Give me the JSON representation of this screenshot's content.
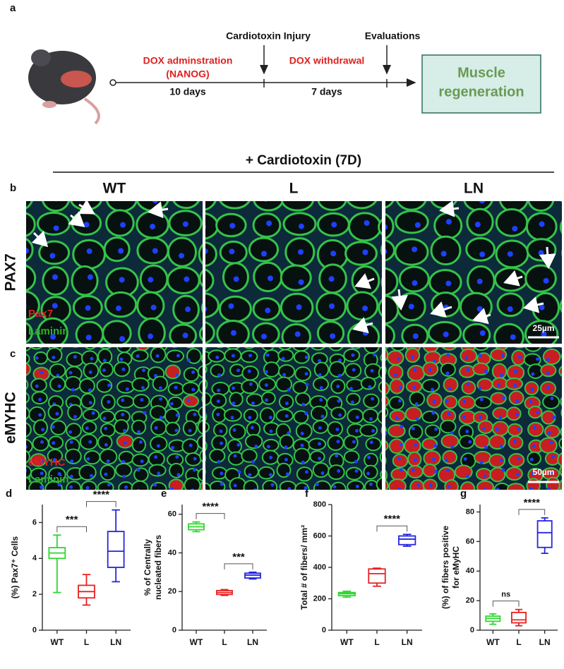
{
  "timeline": {
    "label": "a",
    "events": [
      "Cardiotoxin Injury",
      "Evaluations"
    ],
    "phases": [
      {
        "name": "DOX adminstration",
        "sub": "(NANOG)",
        "duration": "10 days"
      },
      {
        "name": "DOX withdrawal",
        "duration": "7 days"
      }
    ],
    "outcome": [
      "Muscle",
      "regeneration"
    ]
  },
  "microscopy": {
    "treatment": "+ Cardiotoxin (7D)",
    "columns": [
      "WT",
      "L",
      "LN"
    ],
    "rows": [
      {
        "label": "b",
        "name": "PAX7",
        "stain": [
          "Pax7",
          "Laminin"
        ],
        "scale": "25µm"
      },
      {
        "label": "c",
        "name": "eMYHC",
        "stain": [
          "eMYHC",
          "Laminin"
        ],
        "scale": "50µm"
      }
    ]
  },
  "chart_data": [
    {
      "type": "box",
      "label": "d",
      "ylabel": [
        "(%) Pax7⁺ Cells"
      ],
      "categories": [
        "WT",
        "L",
        "LN"
      ],
      "colors": [
        "#2fd62f",
        "#e82020",
        "#2525e0"
      ],
      "min": [
        2.1,
        1.4,
        2.7
      ],
      "q1": [
        4.0,
        1.8,
        3.5
      ],
      "median": [
        4.3,
        2.15,
        4.4
      ],
      "q3": [
        4.6,
        2.5,
        5.5
      ],
      "max": [
        5.3,
        3.1,
        6.7
      ],
      "ylim": [
        0,
        7
      ],
      "yticks": [
        0,
        2,
        4,
        6
      ],
      "comparisons": [
        {
          "pair": [
            "WT",
            "L"
          ],
          "label": "***"
        },
        {
          "pair": [
            "L",
            "LN"
          ],
          "label": "****"
        }
      ]
    },
    {
      "type": "box",
      "label": "e",
      "ylabel": [
        "% of Centrally",
        "nucleated fibers"
      ],
      "categories": [
        "WT",
        "L",
        "LN"
      ],
      "colors": [
        "#2fd62f",
        "#e82020",
        "#2525e0"
      ],
      "min": [
        51,
        18,
        26.5
      ],
      "q1": [
        52,
        18.5,
        27
      ],
      "median": [
        53.5,
        19.5,
        28.5
      ],
      "q3": [
        55,
        20.5,
        29.5
      ],
      "max": [
        56,
        21,
        30
      ],
      "ylim": [
        0,
        65
      ],
      "yticks": [
        0,
        20,
        40,
        60
      ],
      "comparisons": [
        {
          "pair": [
            "WT",
            "L"
          ],
          "label": "****"
        },
        {
          "pair": [
            "L",
            "LN"
          ],
          "label": "***"
        }
      ]
    },
    {
      "type": "box",
      "label": "f",
      "ylabel": [
        "Total # of fibers/ mm²"
      ],
      "categories": [
        "WT",
        "L",
        "LN"
      ],
      "colors": [
        "#2fd62f",
        "#e82020",
        "#2525e0"
      ],
      "min": [
        210,
        280,
        535
      ],
      "q1": [
        220,
        300,
        545
      ],
      "median": [
        232,
        360,
        580
      ],
      "q3": [
        240,
        390,
        600
      ],
      "max": [
        248,
        395,
        610
      ],
      "ylim": [
        0,
        800
      ],
      "yticks": [
        0,
        200,
        400,
        600,
        800
      ],
      "comparisons": [
        {
          "pair": [
            "L",
            "LN"
          ],
          "label": "****"
        }
      ]
    },
    {
      "type": "box",
      "label": "g",
      "ylabel": [
        "(%) of fibers positive",
        "for eMyHC"
      ],
      "categories": [
        "WT",
        "L",
        "LN"
      ],
      "colors": [
        "#2fd62f",
        "#e82020",
        "#2525e0"
      ],
      "min": [
        4,
        3,
        52
      ],
      "q1": [
        6,
        5,
        56
      ],
      "median": [
        8,
        7,
        66
      ],
      "q3": [
        9.5,
        12,
        74
      ],
      "max": [
        11,
        14,
        76
      ],
      "ylim": [
        0,
        85
      ],
      "yticks": [
        0,
        20,
        40,
        60,
        80
      ],
      "comparisons": [
        {
          "pair": [
            "WT",
            "L"
          ],
          "label": "ns"
        },
        {
          "pair": [
            "L",
            "LN"
          ],
          "label": "****"
        }
      ]
    }
  ]
}
